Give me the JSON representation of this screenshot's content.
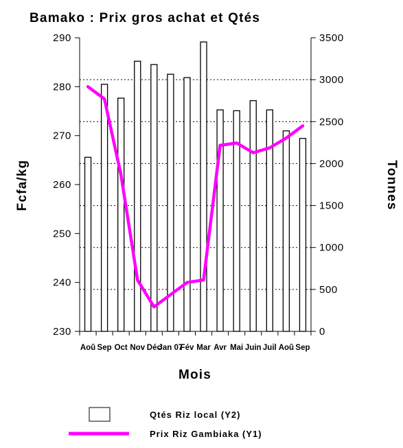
{
  "chart_data": {
    "type": "bar+line",
    "title": "Bamako : Prix  gros achat et Qtés",
    "xlabel": "Mois",
    "ylabel_left": "Fcfa/kg",
    "ylabel_right": "Tonnes",
    "categories": [
      "Aoû",
      "Sep",
      "Oct",
      "Nov",
      "Déc",
      "Jan 07",
      "Fév",
      "Mar",
      "Avr",
      "Mai",
      "Juin",
      "Juil",
      "Aoû",
      "Sep"
    ],
    "ylim_left": [
      230,
      290
    ],
    "yticks_left": [
      "230",
      "240",
      "250",
      "260",
      "270",
      "280",
      "290"
    ],
    "ylim_right": [
      0,
      3500
    ],
    "yticks_right": [
      "0",
      "500",
      "1000",
      "1500",
      "2000",
      "2500",
      "3000",
      "3500"
    ],
    "grid": "dotted horizontal lines at right-axis 500-tonne intervals",
    "legend_position": "bottom",
    "series": [
      {
        "name": "Qtés Riz local (Y2)",
        "kind": "bar",
        "axis": "right",
        "color": "#ffffff",
        "edge_color": "#000000",
        "values": [
          2075,
          2945,
          2780,
          3220,
          3180,
          3065,
          3025,
          3450,
          2640,
          2630,
          2750,
          2640,
          2390,
          2300
        ]
      },
      {
        "name": "Prix Riz Gambiaka (Y1)",
        "kind": "line",
        "axis": "left",
        "color": "#ff00ff",
        "values": [
          280.0,
          277.5,
          262.0,
          240.5,
          235.0,
          237.5,
          240.0,
          240.5,
          268.0,
          268.5,
          266.5,
          267.5,
          269.5,
          272.0
        ]
      }
    ]
  }
}
